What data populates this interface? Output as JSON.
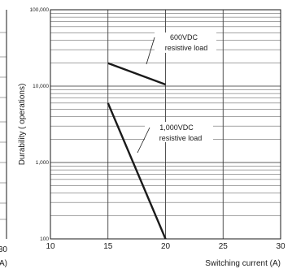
{
  "chart_data": {
    "type": "line",
    "xlabel": "Switching current (A)",
    "ylabel": "Durability ( operations)",
    "x_ticks": [
      10,
      15,
      20,
      25,
      30
    ],
    "y_ticks": [
      100,
      1000,
      10000,
      100000
    ],
    "y_tick_labels": [
      "100",
      "1,000",
      "10,000",
      "100,000"
    ],
    "xlim": [
      10,
      30
    ],
    "ylim": [
      100,
      100000
    ],
    "yscale": "log",
    "grid": true,
    "series": [
      {
        "name": "600VDC resistive load",
        "x": [
          15,
          20
        ],
        "y": [
          20000,
          10500
        ]
      },
      {
        "name": "1,000VDC resistive load",
        "x": [
          15,
          20
        ],
        "y": [
          6000,
          100
        ]
      }
    ],
    "annotations": [
      {
        "lines": [
          "600VDC",
          "resistive load"
        ]
      },
      {
        "lines": [
          "1,000VDC",
          "resistive load"
        ]
      }
    ],
    "left_panel_fragments": {
      "tick": "30",
      "unit": "A)"
    }
  }
}
